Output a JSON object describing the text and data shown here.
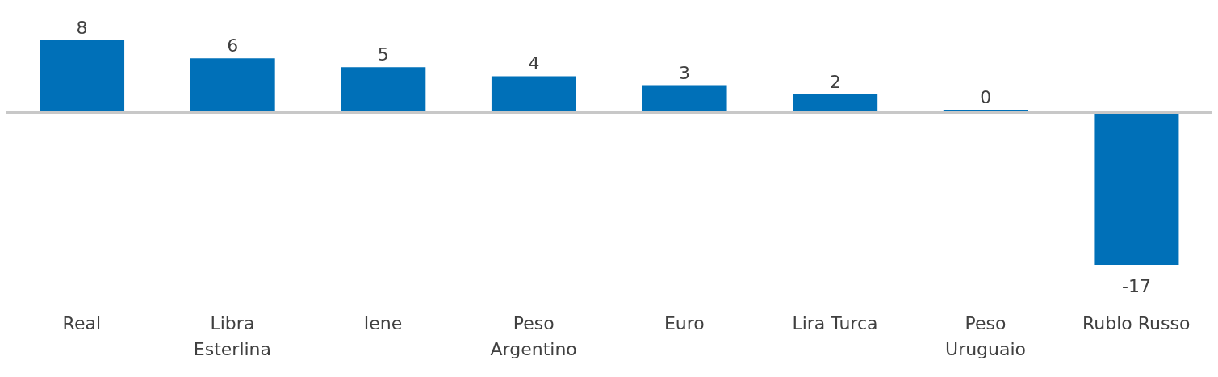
{
  "chart_data": {
    "type": "bar",
    "categories": [
      "Real",
      "Libra Esterlina",
      "Iene",
      "Peso Argentino",
      "Euro",
      "Lira Turca",
      "Peso Uruguaio",
      "Rublo Russo"
    ],
    "values": [
      8,
      6,
      5,
      4,
      3,
      2,
      0,
      -17
    ],
    "color": "#0070b8",
    "data_labels": true
  }
}
